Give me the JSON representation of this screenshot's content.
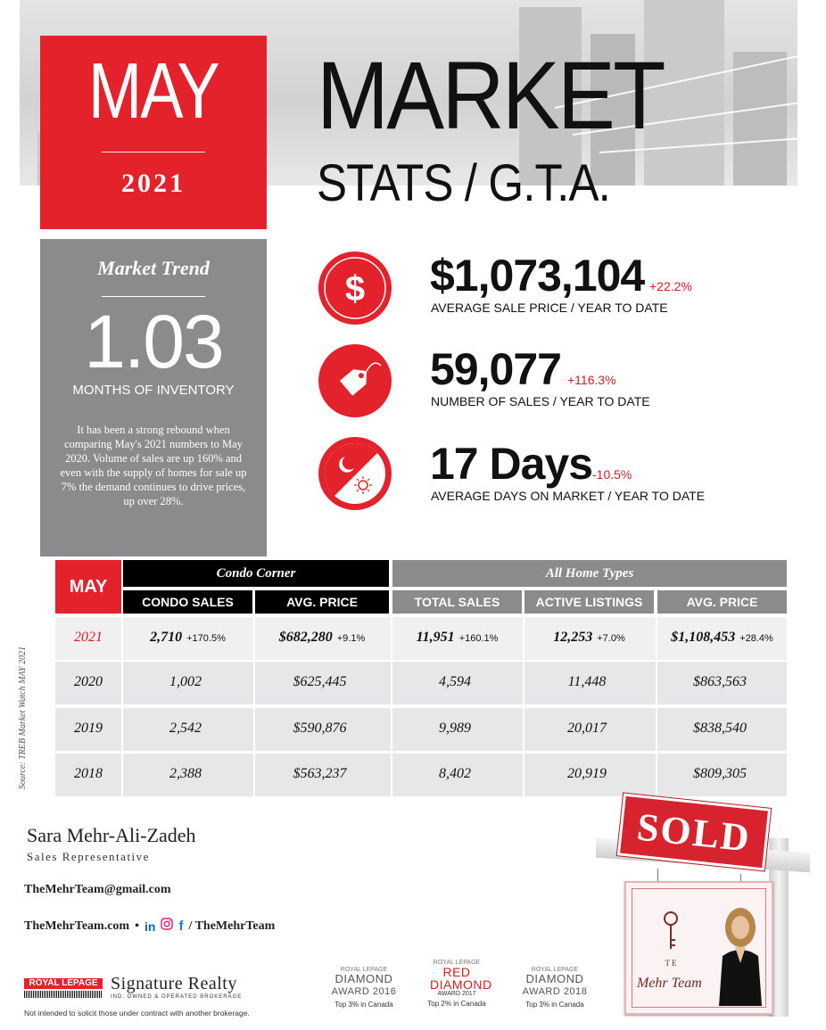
{
  "header": {
    "month": "MAY",
    "year": "2021",
    "title_line1": "MARKET",
    "title_line2": "STATS / G.T.A."
  },
  "trend": {
    "heading": "Market Trend",
    "value": "1.03",
    "unit_label": "MONTHS OF INVENTORY",
    "description": "It has been a strong rebound when comparing May's 2021 numbers to May 2020.  Volume of sales are up 160% and even with the supply of homes for sale up 7% the demand continues to drive prices, up over 28%."
  },
  "stats": [
    {
      "icon": "dollar-icon",
      "value": "$1,073,104",
      "change": "+22.2%",
      "label_bold": "AVERAGE SALE PRICE",
      "label_rest": " / YEAR TO DATE"
    },
    {
      "icon": "price-tag-icon",
      "value": "59,077",
      "change": "+116.3%",
      "label_bold": "NUMBER OF SALES",
      "label_rest": " / YEAR TO DATE"
    },
    {
      "icon": "day-night-icon",
      "value": "17 Days",
      "change": "-10.5%",
      "label_bold": "AVERAGE DAYS ON MARKET",
      "label_rest": " / YEAR TO DATE"
    }
  ],
  "table": {
    "month_header": "MAY",
    "group_condo": "Condo Corner",
    "group_all": "All Home Types",
    "columns": [
      "CONDO SALES",
      "AVG. PRICE",
      "TOTAL SALES",
      "ACTIVE LISTINGS",
      "AVG. PRICE"
    ],
    "rows": [
      {
        "year": "2021",
        "cells": [
          {
            "v": "2,710",
            "c": "+170.5%"
          },
          {
            "v": "$682,280",
            "c": "+9.1%"
          },
          {
            "v": "11,951",
            "c": "+160.1%"
          },
          {
            "v": "12,253",
            "c": "+7.0%"
          },
          {
            "v": "$1,108,453",
            "c": "+28.4%"
          }
        ]
      },
      {
        "year": "2020",
        "cells": [
          {
            "v": "1,002",
            "c": ""
          },
          {
            "v": "$625,445",
            "c": ""
          },
          {
            "v": "4,594",
            "c": ""
          },
          {
            "v": "11,448",
            "c": ""
          },
          {
            "v": "$863,563",
            "c": ""
          }
        ]
      },
      {
        "year": "2019",
        "cells": [
          {
            "v": "2,542",
            "c": ""
          },
          {
            "v": "$590,876",
            "c": ""
          },
          {
            "v": "9,989",
            "c": ""
          },
          {
            "v": "20,017",
            "c": ""
          },
          {
            "v": "$838,540",
            "c": ""
          }
        ]
      },
      {
        "year": "2018",
        "cells": [
          {
            "v": "2,388",
            "c": ""
          },
          {
            "v": "$563,237",
            "c": ""
          },
          {
            "v": "8,402",
            "c": ""
          },
          {
            "v": "20,919",
            "c": ""
          },
          {
            "v": "$809,305",
            "c": ""
          }
        ]
      }
    ],
    "source": "Source: TREB Market Watch MAY 2021"
  },
  "agent": {
    "name": "Sara Mehr-Ali-Zadeh",
    "role": "Sales Representative",
    "email": "TheMehrTeam@gmail.com",
    "website": "TheMehrTeam.com",
    "bullet": "•",
    "handle": "/ TheMehrTeam"
  },
  "brokerage": {
    "logo_text": "ROYAL LEPAGE",
    "name": "Signature Realty",
    "sub": "IND. OWNED & OPERATED BROKERAGE",
    "disclaimer": "Not intended to solicit those under contract with another brokerage."
  },
  "awards": [
    {
      "brand": "ROYAL LEPAGE",
      "line1": "DIAMOND",
      "line2": "AWARD 2016",
      "note": "Top 3% in Canada"
    },
    {
      "brand": "ROYAL LEPAGE",
      "line1": "RED DIAMOND",
      "line2": "AWARD 2017",
      "note": "Top 2% in Canada"
    },
    {
      "brand": "ROYAL LEPAGE",
      "line1": "DIAMOND",
      "line2": "AWARD 2018",
      "note": "Top 3% in Canada"
    }
  ],
  "sign": {
    "sold": "SOLD",
    "team": "Mehr Team",
    "monogram": "T E"
  },
  "colors": {
    "accent": "#e3222c",
    "gray": "#8a8b8d",
    "row": "#e6e7e9"
  }
}
